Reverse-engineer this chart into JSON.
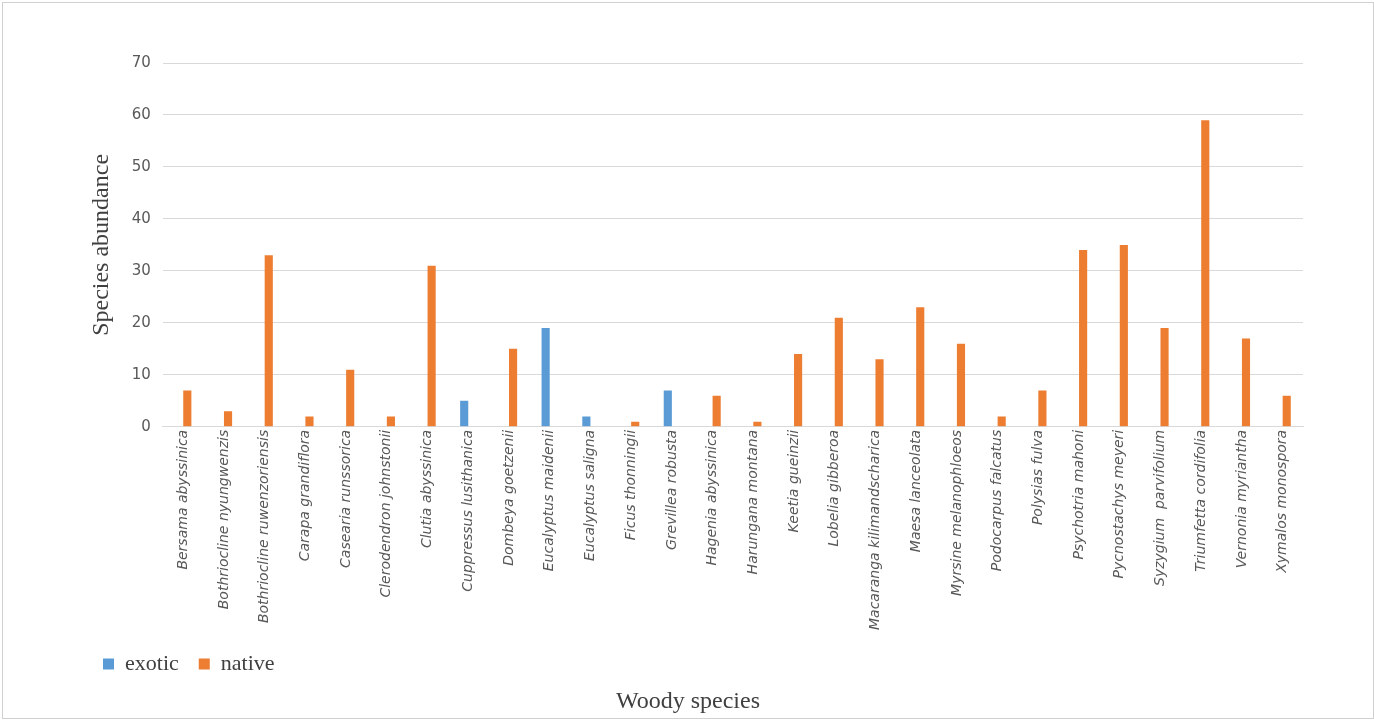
{
  "chart_data": {
    "type": "bar",
    "ylabel": "Species abundance",
    "xlabel": "Woody species",
    "categories": [
      "Bersama abyssinica",
      "Bothriocline nyungwenzis",
      "Bothriocline ruwenzoriensis",
      "Carapa grandiflora",
      "Casearia runssorica",
      "Clerodendron johnstonii",
      "Clutia abyssinica",
      "Cuppressus lusithanica",
      "Dombeya goetzenii",
      "Eucalyptus maidenii",
      "Eucalyptus saligna",
      "Ficus thonningii",
      "Grevillea robusta",
      "Hagenia abyssinica",
      "Harungana montana",
      "Keetia gueinzii",
      "Lobelia gibberoa",
      "Macaranga kilimandscharica",
      "Maesa lanceolata",
      "Myrsine melanophloeos",
      "Podocarpus falcatus",
      "Polysias fulva",
      "Psychotria mahoni",
      "Pycnostachys meyeri",
      "Syzygium  parvifolium",
      "Triumfetta cordifolia",
      "Vernonia myriantha",
      "Xymalos monospora"
    ],
    "series": [
      {
        "name": "exotic",
        "color": "#5b9bd5",
        "values": [
          null,
          null,
          null,
          null,
          null,
          null,
          null,
          5,
          null,
          19,
          2,
          null,
          7,
          null,
          null,
          null,
          null,
          null,
          null,
          null,
          null,
          null,
          null,
          null,
          null,
          null,
          null,
          null
        ]
      },
      {
        "name": "native",
        "color": "#ed7d31",
        "values": [
          7,
          3,
          33,
          2,
          11,
          2,
          31,
          null,
          15,
          null,
          null,
          1,
          null,
          6,
          1,
          14,
          21,
          13,
          23,
          16,
          2,
          7,
          34,
          35,
          19,
          59,
          17,
          6
        ]
      }
    ],
    "ylim": [
      0,
      70
    ],
    "yticks": [
      0,
      10,
      20,
      30,
      40,
      50,
      60,
      70
    ],
    "grid": "y",
    "legend": "bottom"
  }
}
